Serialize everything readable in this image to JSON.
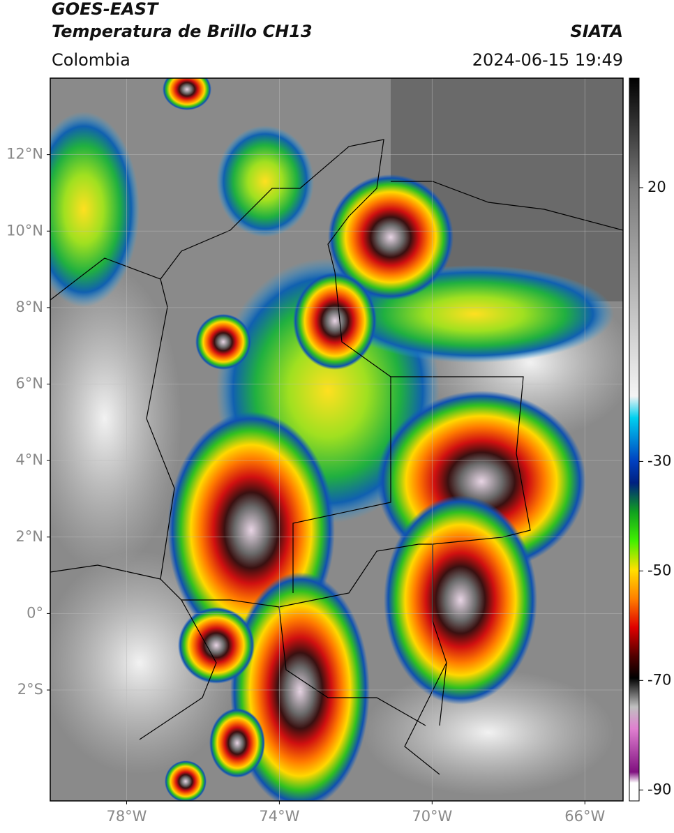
{
  "header": {
    "title": "GOES-EAST",
    "subtitle": "Temperatura de Brillo CH13",
    "source": "SIATA",
    "region": "Colombia",
    "datetime": "2024-06-15 19:49"
  },
  "map": {
    "lonlim": [
      -80,
      -65
    ],
    "latlim": [
      -4.9,
      14
    ],
    "grid": true,
    "lon_ticks": [
      {
        "value": -78,
        "label": "78°W"
      },
      {
        "value": -74,
        "label": "74°W"
      },
      {
        "value": -70,
        "label": "70°W"
      },
      {
        "value": -66,
        "label": "66°W"
      }
    ],
    "lat_ticks": [
      {
        "value": 12,
        "label": "12°N"
      },
      {
        "value": 10,
        "label": "10°N"
      },
      {
        "value": 8,
        "label": "8°N"
      },
      {
        "value": 6,
        "label": "6°N"
      },
      {
        "value": 4,
        "label": "4°N"
      },
      {
        "value": 2,
        "label": "2°N"
      },
      {
        "value": 0,
        "label": "0°"
      },
      {
        "value": -2,
        "label": "2°S"
      }
    ]
  },
  "colorbar": {
    "lim": [
      -92,
      40
    ],
    "ticks": [
      20,
      -30,
      -50,
      -70,
      -90
    ]
  }
}
